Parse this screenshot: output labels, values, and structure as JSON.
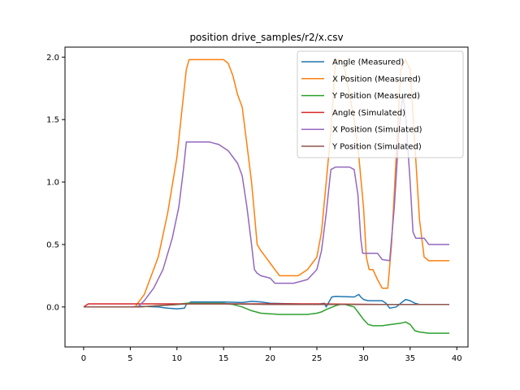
{
  "chart_data": {
    "type": "line",
    "title": "position drive_samples/r2/x.csv",
    "xlabel": "",
    "ylabel": "",
    "xlim": [
      -2.0,
      41.2
    ],
    "ylim": [
      -0.32,
      2.08
    ],
    "xticks": [
      0,
      5,
      10,
      15,
      20,
      25,
      30,
      35,
      40
    ],
    "yticks": [
      0.0,
      0.5,
      1.0,
      1.5,
      2.0
    ],
    "xtick_labels": [
      "0",
      "5",
      "10",
      "15",
      "20",
      "25",
      "30",
      "35",
      "40"
    ],
    "ytick_labels": [
      "0.0",
      "0.5",
      "1.0",
      "1.5",
      "2.0"
    ],
    "grid": false,
    "legend_position": "top-right",
    "series": [
      {
        "name": "Angle (Measured)",
        "color": "#1f77b4",
        "points": [
          [
            0,
            0
          ],
          [
            5,
            0
          ],
          [
            6,
            0.005
          ],
          [
            8,
            0
          ],
          [
            8.5,
            -0.005
          ],
          [
            9,
            -0.01
          ],
          [
            10,
            -0.015
          ],
          [
            10.8,
            -0.01
          ],
          [
            11,
            0.02
          ],
          [
            11.5,
            0.04
          ],
          [
            15,
            0.04
          ],
          [
            17,
            0.035
          ],
          [
            18,
            0.045
          ],
          [
            19,
            0.04
          ],
          [
            20,
            0.03
          ],
          [
            25,
            0.02
          ],
          [
            25.8,
            0.03
          ],
          [
            26,
            0.0
          ],
          [
            26.3,
            0.04
          ],
          [
            26.6,
            0.08
          ],
          [
            27,
            0.085
          ],
          [
            29,
            0.08
          ],
          [
            29.5,
            0.1
          ],
          [
            29.7,
            0.08
          ],
          [
            30,
            0.06
          ],
          [
            30.5,
            0.05
          ],
          [
            32,
            0.05
          ],
          [
            32.4,
            0.03
          ],
          [
            32.8,
            -0.01
          ],
          [
            33.5,
            0.0
          ],
          [
            34,
            0.03
          ],
          [
            34.5,
            0.06
          ],
          [
            35,
            0.05
          ],
          [
            35.5,
            0.03
          ],
          [
            36,
            0.02
          ],
          [
            39.2,
            0.02
          ]
        ]
      },
      {
        "name": "X Position (Measured)",
        "color": "#ff7f0e",
        "points": [
          [
            0,
            0
          ],
          [
            5.5,
            0
          ],
          [
            6.5,
            0.1
          ],
          [
            8,
            0.4
          ],
          [
            9,
            0.75
          ],
          [
            10,
            1.2
          ],
          [
            10.5,
            1.55
          ],
          [
            11,
            1.9
          ],
          [
            11.3,
            1.98
          ],
          [
            15,
            1.98
          ],
          [
            15.5,
            1.95
          ],
          [
            16,
            1.85
          ],
          [
            16.5,
            1.7
          ],
          [
            17,
            1.6
          ],
          [
            17.5,
            1.3
          ],
          [
            18,
            1.0
          ],
          [
            18.3,
            0.75
          ],
          [
            18.6,
            0.5
          ],
          [
            19,
            0.45
          ],
          [
            19.5,
            0.4
          ],
          [
            20,
            0.35
          ],
          [
            20.5,
            0.3
          ],
          [
            21,
            0.25
          ],
          [
            23,
            0.25
          ],
          [
            24,
            0.3
          ],
          [
            24.5,
            0.35
          ],
          [
            25,
            0.4
          ],
          [
            25.5,
            0.6
          ],
          [
            26,
            1.0
          ],
          [
            26.5,
            1.4
          ],
          [
            27,
            1.98
          ],
          [
            27.5,
            1.98
          ],
          [
            28,
            1.9
          ],
          [
            28.5,
            1.7
          ],
          [
            29,
            1.5
          ],
          [
            29.5,
            1.2
          ],
          [
            30,
            0.8
          ],
          [
            30.3,
            0.4
          ],
          [
            30.6,
            0.3
          ],
          [
            31,
            0.3
          ],
          [
            31.5,
            0.22
          ],
          [
            32,
            0.15
          ],
          [
            32.6,
            0.15
          ],
          [
            33,
            0.5
          ],
          [
            33.5,
            1.2
          ],
          [
            34,
            1.9
          ],
          [
            34.5,
            1.98
          ],
          [
            35,
            1.9
          ],
          [
            35.5,
            1.3
          ],
          [
            36,
            0.7
          ],
          [
            36.5,
            0.4
          ],
          [
            37,
            0.37
          ],
          [
            39.2,
            0.37
          ]
        ]
      },
      {
        "name": "Y Position (Measured)",
        "color": "#2ca02c",
        "points": [
          [
            0,
            0
          ],
          [
            6,
            0
          ],
          [
            10,
            0.02
          ],
          [
            11,
            0.03
          ],
          [
            15,
            0.03
          ],
          [
            16,
            0.02
          ],
          [
            17,
            0.0
          ],
          [
            18,
            -0.03
          ],
          [
            19,
            -0.05
          ],
          [
            21,
            -0.06
          ],
          [
            24,
            -0.06
          ],
          [
            25,
            -0.05
          ],
          [
            25.5,
            -0.04
          ],
          [
            26,
            -0.02
          ],
          [
            27,
            0.01
          ],
          [
            27.5,
            0.02
          ],
          [
            28,
            0.02
          ],
          [
            28.5,
            0.01
          ],
          [
            29,
            0.0
          ],
          [
            29.5,
            -0.05
          ],
          [
            30,
            -0.1
          ],
          [
            30.5,
            -0.14
          ],
          [
            31,
            -0.15
          ],
          [
            32,
            -0.15
          ],
          [
            33,
            -0.14
          ],
          [
            34,
            -0.13
          ],
          [
            34.5,
            -0.12
          ],
          [
            35,
            -0.14
          ],
          [
            35.5,
            -0.19
          ],
          [
            36,
            -0.2
          ],
          [
            37,
            -0.21
          ],
          [
            39.2,
            -0.21
          ]
        ]
      },
      {
        "name": "Angle (Simulated)",
        "color": "#d62728",
        "points": [
          [
            0,
            0
          ],
          [
            0.5,
            0.025
          ],
          [
            15,
            0.025
          ],
          [
            25,
            0.025
          ],
          [
            32,
            0.02
          ],
          [
            39.2,
            0.02
          ]
        ]
      },
      {
        "name": "X Position (Simulated)",
        "color": "#9467bd",
        "points": [
          [
            0,
            0
          ],
          [
            5.8,
            0
          ],
          [
            6.5,
            0.05
          ],
          [
            7.5,
            0.15
          ],
          [
            8.5,
            0.3
          ],
          [
            9.5,
            0.55
          ],
          [
            10.2,
            0.8
          ],
          [
            10.7,
            1.1
          ],
          [
            11,
            1.32
          ],
          [
            13.5,
            1.32
          ],
          [
            14.5,
            1.3
          ],
          [
            15.5,
            1.25
          ],
          [
            16.5,
            1.15
          ],
          [
            17,
            1.05
          ],
          [
            17.5,
            0.8
          ],
          [
            18,
            0.5
          ],
          [
            18.3,
            0.3
          ],
          [
            18.6,
            0.27
          ],
          [
            19,
            0.25
          ],
          [
            20,
            0.23
          ],
          [
            20.5,
            0.19
          ],
          [
            22.5,
            0.19
          ],
          [
            23,
            0.2
          ],
          [
            24,
            0.22
          ],
          [
            25,
            0.3
          ],
          [
            25.5,
            0.45
          ],
          [
            26,
            0.75
          ],
          [
            26.5,
            1.1
          ],
          [
            27,
            1.12
          ],
          [
            28.5,
            1.12
          ],
          [
            29,
            1.1
          ],
          [
            29.4,
            0.9
          ],
          [
            29.7,
            0.55
          ],
          [
            29.9,
            0.43
          ],
          [
            31.5,
            0.43
          ],
          [
            32,
            0.38
          ],
          [
            32.8,
            0.37
          ],
          [
            33.3,
            0.8
          ],
          [
            33.8,
            1.4
          ],
          [
            34.2,
            1.7
          ],
          [
            34.5,
            1.55
          ],
          [
            35,
            1.0
          ],
          [
            35.3,
            0.6
          ],
          [
            35.6,
            0.55
          ],
          [
            36.5,
            0.55
          ],
          [
            37,
            0.5
          ],
          [
            39.2,
            0.5
          ]
        ]
      },
      {
        "name": "Y Position (Simulated)",
        "color": "#8c564b",
        "points": [
          [
            0,
            0
          ],
          [
            5,
            0
          ],
          [
            6,
            0.0
          ],
          [
            8,
            0.01
          ],
          [
            10,
            0.02
          ],
          [
            11,
            0.025
          ],
          [
            15,
            0.025
          ],
          [
            20,
            0.02
          ],
          [
            25,
            0.02
          ],
          [
            30,
            0.02
          ],
          [
            35,
            0.02
          ],
          [
            39.2,
            0.02
          ]
        ]
      }
    ]
  }
}
